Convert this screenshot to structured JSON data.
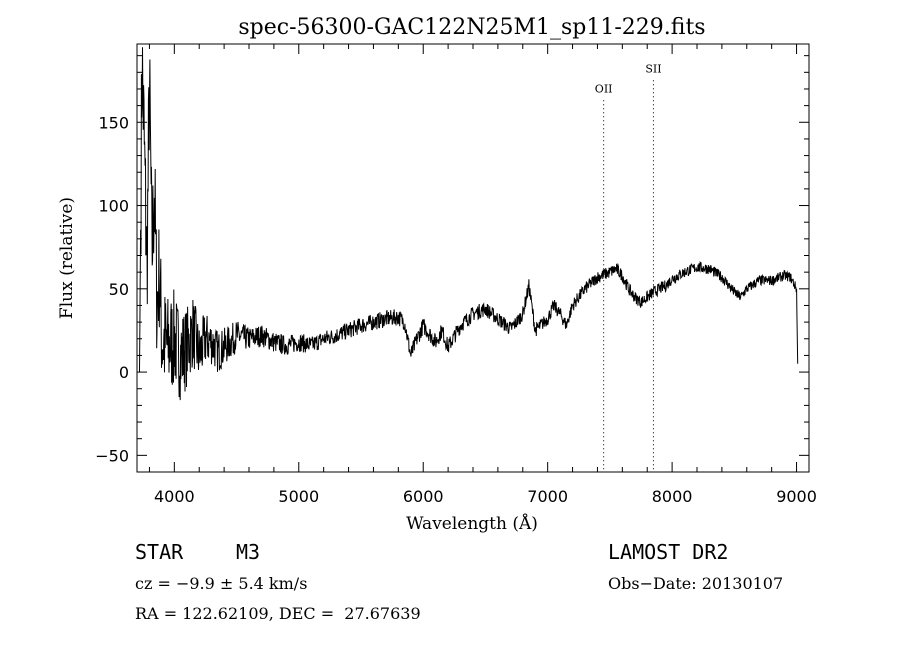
{
  "chart_data": {
    "type": "line",
    "title": "spec-56300-GAC122N25M1_sp11-229.fits",
    "xlabel": "Wavelength (Å)",
    "ylabel": "Flux (relative)",
    "xlim": [
      3700,
      9100
    ],
    "ylim": [
      -60,
      197
    ],
    "x_ticks": [
      4000,
      5000,
      6000,
      7000,
      8000,
      9000
    ],
    "y_ticks": [
      -50,
      0,
      50,
      100,
      150
    ],
    "x_tick_labels": [
      "4000",
      "5000",
      "6000",
      "7000",
      "8000",
      "9000"
    ],
    "y_tick_labels": [
      "−50",
      "0",
      "50",
      "100",
      "150"
    ],
    "grid": false,
    "line_color": "#000000",
    "anchors": [
      [
        3720,
        0
      ],
      [
        3740,
        190
      ],
      [
        3760,
        130
      ],
      [
        3780,
        60
      ],
      [
        3800,
        175
      ],
      [
        3820,
        70
      ],
      [
        3840,
        110
      ],
      [
        3860,
        40
      ],
      [
        3880,
        60
      ],
      [
        3900,
        20
      ],
      [
        3950,
        15
      ],
      [
        4000,
        20
      ],
      [
        4050,
        10
      ],
      [
        4100,
        15
      ],
      [
        4150,
        25
      ],
      [
        4200,
        10
      ],
      [
        4250,
        20
      ],
      [
        4300,
        18
      ],
      [
        4350,
        12
      ],
      [
        4400,
        15
      ],
      [
        4450,
        18
      ],
      [
        4500,
        22
      ],
      [
        4600,
        20
      ],
      [
        4700,
        22
      ],
      [
        4800,
        18
      ],
      [
        4900,
        16
      ],
      [
        5000,
        18
      ],
      [
        5100,
        16
      ],
      [
        5200,
        20
      ],
      [
        5300,
        22
      ],
      [
        5400,
        25
      ],
      [
        5500,
        28
      ],
      [
        5600,
        30
      ],
      [
        5700,
        32
      ],
      [
        5800,
        33
      ],
      [
        5850,
        30
      ],
      [
        5900,
        10
      ],
      [
        5950,
        20
      ],
      [
        6000,
        28
      ],
      [
        6100,
        18
      ],
      [
        6150,
        25
      ],
      [
        6200,
        15
      ],
      [
        6300,
        28
      ],
      [
        6400,
        35
      ],
      [
        6500,
        38
      ],
      [
        6600,
        32
      ],
      [
        6700,
        26
      ],
      [
        6750,
        30
      ],
      [
        6800,
        35
      ],
      [
        6850,
        52
      ],
      [
        6900,
        25
      ],
      [
        7000,
        32
      ],
      [
        7050,
        40
      ],
      [
        7100,
        35
      ],
      [
        7150,
        28
      ],
      [
        7200,
        40
      ],
      [
        7300,
        50
      ],
      [
        7400,
        57
      ],
      [
        7500,
        60
      ],
      [
        7550,
        62
      ],
      [
        7600,
        58
      ],
      [
        7650,
        50
      ],
      [
        7700,
        45
      ],
      [
        7750,
        42
      ],
      [
        7800,
        45
      ],
      [
        7850,
        48
      ],
      [
        7900,
        50
      ],
      [
        7950,
        52
      ],
      [
        8000,
        56
      ],
      [
        8100,
        60
      ],
      [
        8200,
        63
      ],
      [
        8300,
        62
      ],
      [
        8400,
        57
      ],
      [
        8500,
        48
      ],
      [
        8550,
        45
      ],
      [
        8600,
        50
      ],
      [
        8700,
        55
      ],
      [
        8800,
        55
      ],
      [
        8900,
        58
      ],
      [
        8950,
        57
      ],
      [
        9000,
        50
      ],
      [
        9010,
        0
      ]
    ],
    "sample_step": 3,
    "noise": {
      "seed": 7,
      "points": [
        [
          3700,
          45
        ],
        [
          4000,
          30
        ],
        [
          4300,
          14
        ],
        [
          4600,
          7
        ],
        [
          5200,
          5
        ],
        [
          6000,
          5
        ],
        [
          7000,
          4
        ],
        [
          9000,
          3
        ]
      ]
    },
    "lines": [
      {
        "name": "OII",
        "x": 7450,
        "label_y": 168
      },
      {
        "name": "SII",
        "x": 7850,
        "label_y": 180
      }
    ]
  },
  "info": {
    "class": "STAR",
    "subclass": "M3",
    "survey": "LAMOST DR2",
    "cz": "cz = −9.9 ± 5.4 km/s",
    "obs_date": "Obs−Date: 20130107",
    "ra_dec": "RA = 122.62109, DEC =  27.67639"
  }
}
